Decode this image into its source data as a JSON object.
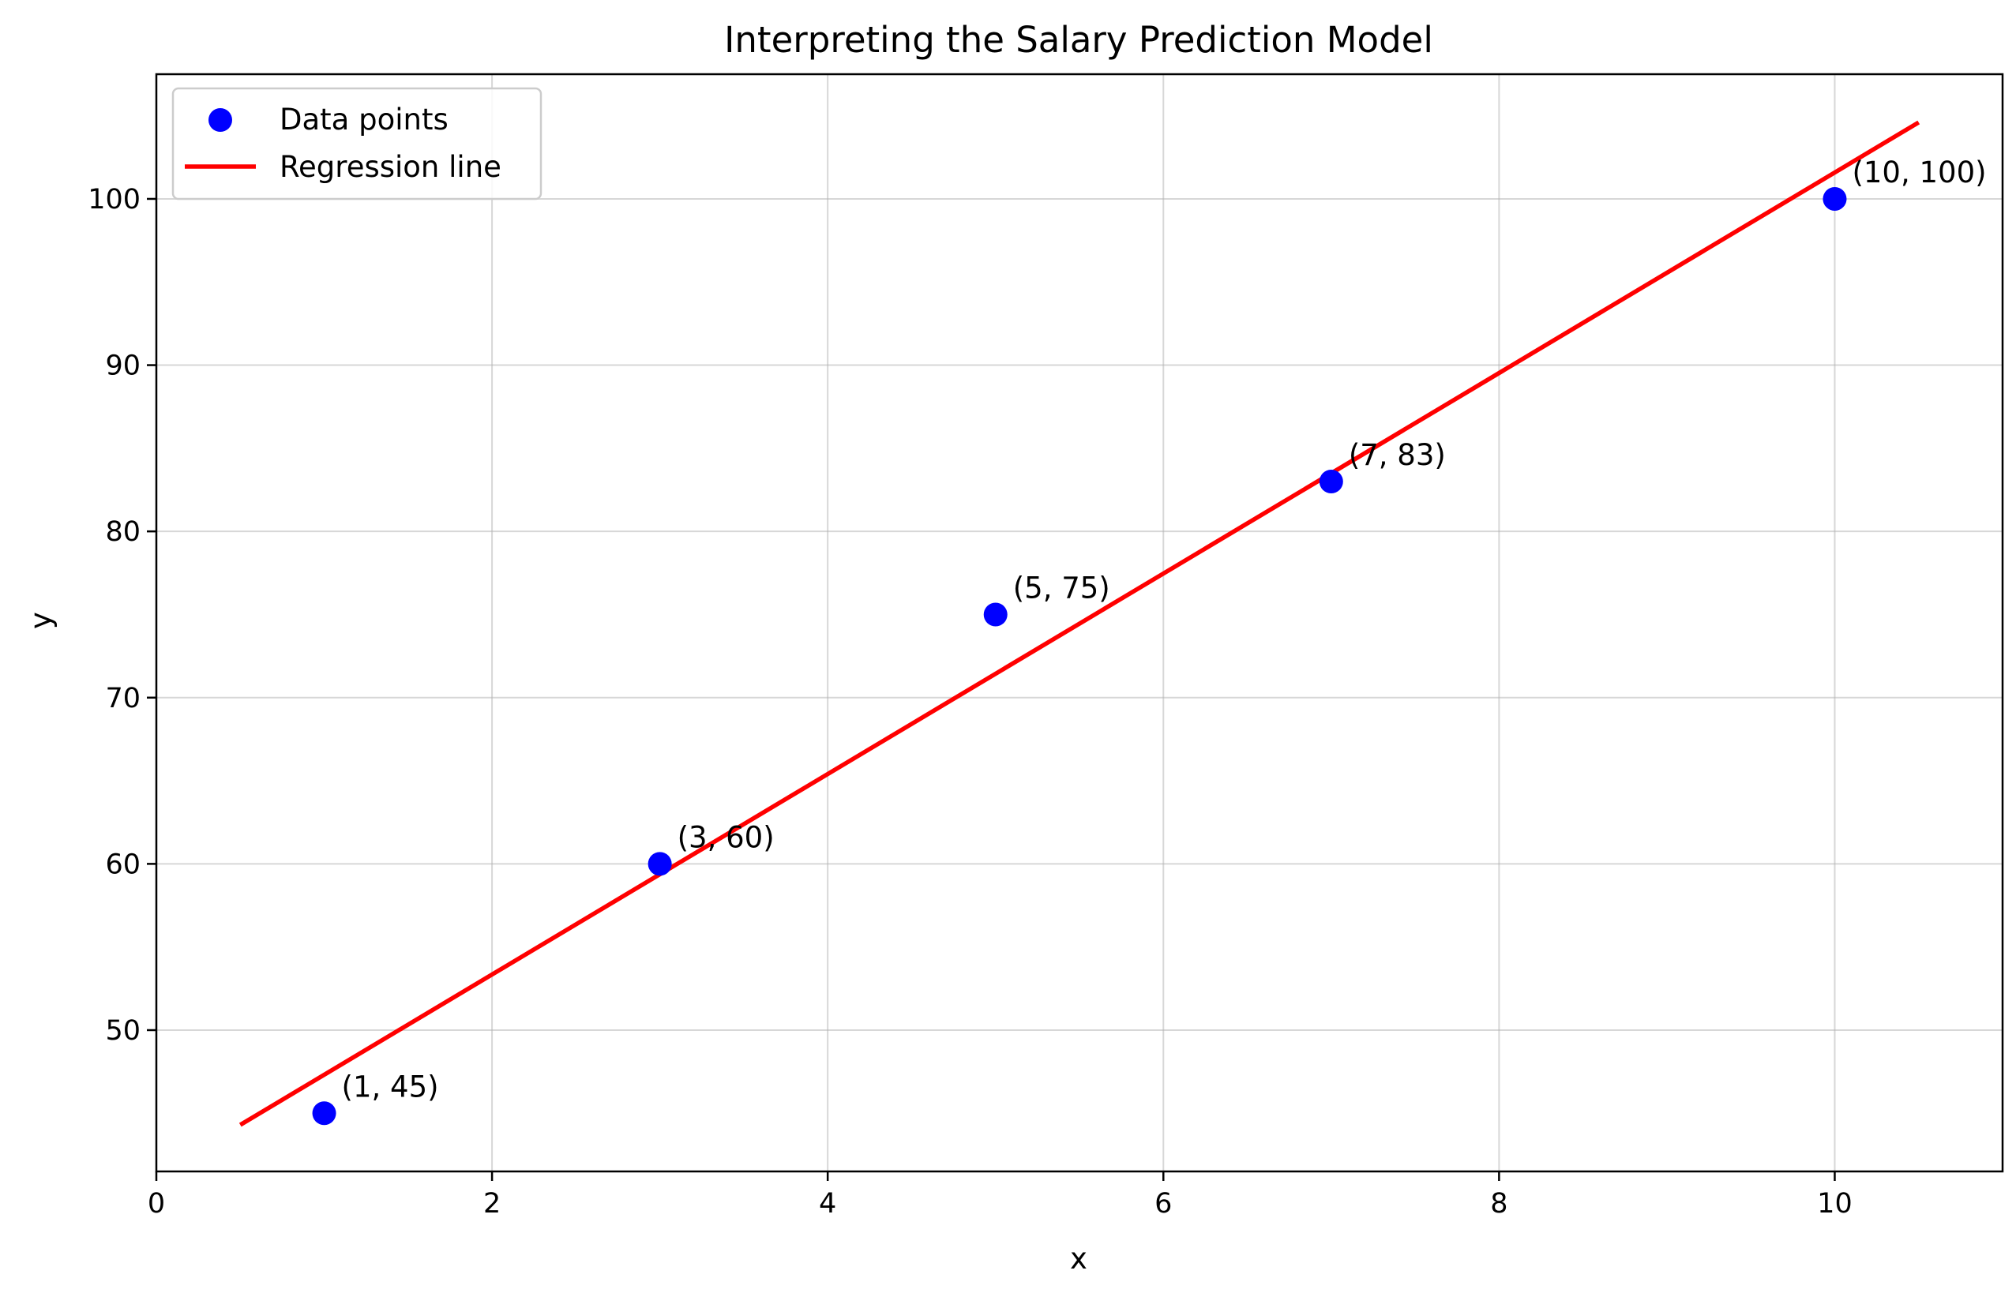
{
  "chart_data": {
    "type": "scatter",
    "title": "Interpreting the Salary Prediction Model",
    "xlabel": "x",
    "ylabel": "y",
    "xlim": [
      0,
      11
    ],
    "ylim": [
      41.5,
      107.5
    ],
    "xticks": [
      0,
      2,
      4,
      6,
      8,
      10
    ],
    "yticks": [
      50,
      60,
      70,
      80,
      90,
      100
    ],
    "grid": true,
    "legend": {
      "placement": "top-left",
      "entries": [
        {
          "label": "Data points",
          "marker": "circle",
          "color": "#0000ff"
        },
        {
          "label": "Regression line",
          "marker": "line",
          "color": "#ff0000"
        }
      ]
    },
    "series": [
      {
        "name": "Data points",
        "kind": "scatter",
        "color": "#0000ff",
        "x": [
          1,
          3,
          5,
          7,
          10
        ],
        "y": [
          45,
          60,
          75,
          83,
          100
        ],
        "labels": [
          "(1, 45)",
          "(3, 60)",
          "(5, 75)",
          "(7, 83)",
          "(10, 100)"
        ]
      },
      {
        "name": "Regression line",
        "kind": "line",
        "color": "#ff0000",
        "x": [
          0.5,
          10.5
        ],
        "y": [
          44.3,
          104.6
        ]
      }
    ]
  }
}
